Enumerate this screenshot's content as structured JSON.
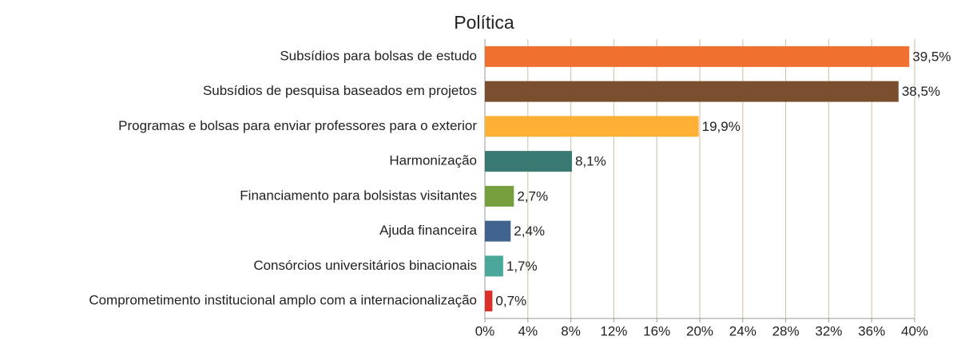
{
  "chart_data": {
    "type": "hbar",
    "title": "Política",
    "categories": [
      "Subsídios para bolsas de estudo",
      "Subsídios de pesquisa baseados em projetos",
      "Programas e bolsas para enviar professores para o exterior",
      "Harmonização",
      "Financiamento para bolsistas visitantes",
      "Ajuda financeira",
      "Consórcios universitários binacionais",
      "Comprometimento institucional amplo com a internacionalização"
    ],
    "values": [
      39.5,
      38.5,
      19.9,
      8.1,
      2.7,
      2.4,
      1.7,
      0.7
    ],
    "value_labels": [
      "39,5%",
      "38,5%",
      "19,9%",
      "8,1%",
      "2,7%",
      "2,4%",
      "1,7%",
      "0,7%"
    ],
    "colors": [
      "#f07030",
      "#7b4f2e",
      "#fdb035",
      "#3a7a72",
      "#76a03e",
      "#41648e",
      "#4aa89a",
      "#d9312a"
    ],
    "xlim": [
      0,
      40
    ],
    "xticks": [
      {
        "value": 0,
        "label": "0%"
      },
      {
        "value": 4,
        "label": "4%"
      },
      {
        "value": 8,
        "label": "8%"
      },
      {
        "value": 12,
        "label": "12%"
      },
      {
        "value": 16,
        "label": "16%"
      },
      {
        "value": 20,
        "label": "20%"
      },
      {
        "value": 24,
        "label": "24%"
      },
      {
        "value": 28,
        "label": "28%"
      },
      {
        "value": 32,
        "label": "32%"
      },
      {
        "value": 36,
        "label": "36%"
      },
      {
        "value": 40,
        "label": "40%"
      }
    ],
    "grid": true
  }
}
